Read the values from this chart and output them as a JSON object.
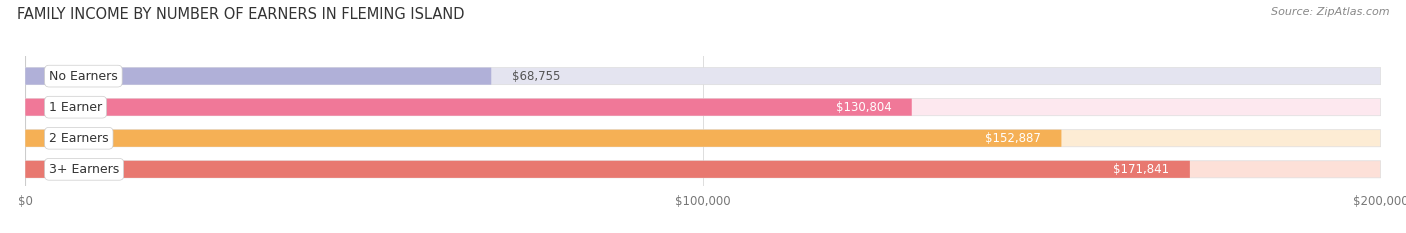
{
  "title": "FAMILY INCOME BY NUMBER OF EARNERS IN FLEMING ISLAND",
  "source": "Source: ZipAtlas.com",
  "categories": [
    "No Earners",
    "1 Earner",
    "2 Earners",
    "3+ Earners"
  ],
  "values": [
    68755,
    130804,
    152887,
    171841
  ],
  "bar_colors": [
    "#b0b0d8",
    "#f07898",
    "#f5b055",
    "#e87870"
  ],
  "bar_bg_colors": [
    "#e4e4f0",
    "#fde8ef",
    "#fdecd4",
    "#fde0d8"
  ],
  "value_labels": [
    "$68,755",
    "$130,804",
    "$152,887",
    "$171,841"
  ],
  "value_label_dark": [
    true,
    false,
    false,
    false
  ],
  "xlim": [
    0,
    200000
  ],
  "xticks": [
    0,
    100000,
    200000
  ],
  "xtick_labels": [
    "$0",
    "$100,000",
    "$200,000"
  ],
  "bg_color": "#ffffff",
  "plot_bg": "#f5f5f5",
  "title_fontsize": 10.5,
  "source_fontsize": 8,
  "label_fontsize": 9,
  "value_fontsize": 8.5,
  "row_bg_color": "#eeeeee"
}
